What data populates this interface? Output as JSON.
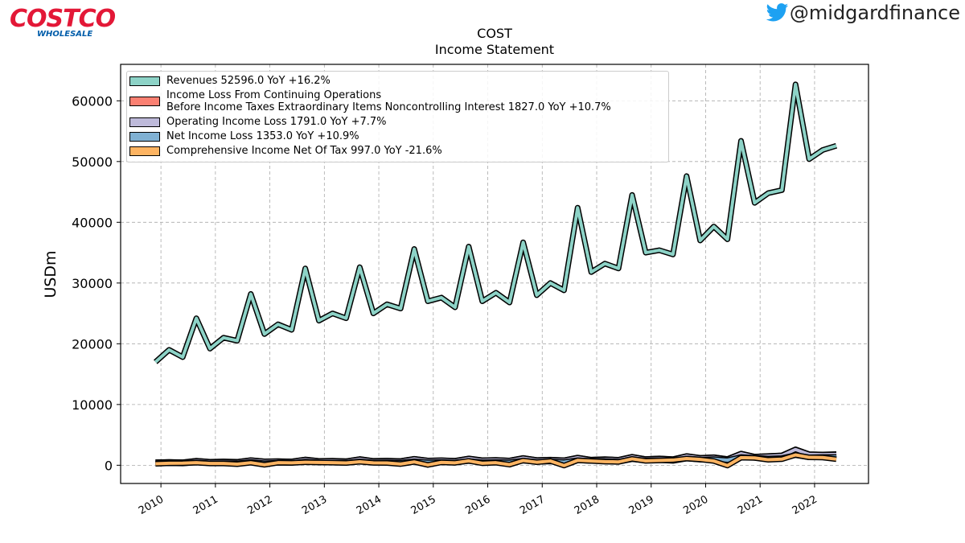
{
  "logo": {
    "brand": "COSTCO",
    "tagline": "WHOLESALE"
  },
  "watermark": "@midgardfinance",
  "chart_data": {
    "type": "line",
    "title": "COST",
    "subtitle": "Income Statement",
    "y_label": "USDm",
    "x": [
      2009.9,
      2010.15,
      2010.4,
      2010.65,
      2010.9,
      2011.15,
      2011.4,
      2011.65,
      2011.9,
      2012.15,
      2012.4,
      2012.65,
      2012.9,
      2013.15,
      2013.4,
      2013.65,
      2013.9,
      2014.15,
      2014.4,
      2014.65,
      2014.9,
      2015.15,
      2015.4,
      2015.65,
      2015.9,
      2016.15,
      2016.4,
      2016.65,
      2016.9,
      2017.15,
      2017.4,
      2017.65,
      2017.9,
      2018.15,
      2018.4,
      2018.65,
      2018.9,
      2019.15,
      2019.4,
      2019.65,
      2019.9,
      2020.15,
      2020.4,
      2020.65,
      2020.9,
      2021.15,
      2021.4,
      2021.65,
      2021.9,
      2022.15,
      2022.4
    ],
    "xlim": [
      2009.26,
      2022.99
    ],
    "xticks": [
      2010,
      2011,
      2012,
      2013,
      2014,
      2015,
      2016,
      2017,
      2018,
      2019,
      2020,
      2021,
      2022
    ],
    "ylim": [
      -3000,
      66000
    ],
    "yticks": [
      0,
      10000,
      20000,
      30000,
      40000,
      50000,
      60000
    ],
    "grid": true,
    "legend": "upper left",
    "series": [
      {
        "name": "Revenues  52596.0 YoY +16.2%",
        "color": "#8dd3c7",
        "values": [
          17000,
          19000,
          17800,
          24200,
          19200,
          21000,
          20500,
          28200,
          21600,
          23200,
          22300,
          32400,
          23800,
          25000,
          24200,
          32600,
          25000,
          26500,
          25800,
          35600,
          27000,
          27600,
          26000,
          36000,
          27000,
          28400,
          26800,
          36700,
          28000,
          30000,
          28800,
          42400,
          31800,
          33200,
          32400,
          44500,
          35000,
          35400,
          34700,
          47600,
          37000,
          39300,
          37200,
          53400,
          43200,
          44800,
          45300,
          62700,
          50400,
          51900,
          52596
        ]
      },
      {
        "name": "Income Loss From Continuing Operations\nBefore Income Taxes Extraordinary Items Noncontrolling Interest  1827.0 YoY +10.7%",
        "color": "#fb8072",
        "values": [
          500,
          540,
          490,
          740,
          580,
          620,
          570,
          850,
          640,
          680,
          630,
          950,
          710,
          740,
          670,
          1020,
          720,
          760,
          700,
          1060,
          780,
          820,
          740,
          1120,
          820,
          870,
          780,
          1200,
          860,
          920,
          820,
          1260,
          920,
          1000,
          900,
          1400,
          1020,
          1120,
          1000,
          1520,
          1220,
          1320,
          1020,
          1920,
          1420,
          1520,
          1620,
          2620,
          1820,
          1770,
          1827
        ]
      },
      {
        "name": "Operating Income Loss  1791.0 YoY +7.7%",
        "color": "#bebada",
        "values": [
          480,
          520,
          470,
          720,
          560,
          600,
          550,
          830,
          620,
          660,
          610,
          930,
          690,
          720,
          650,
          1000,
          700,
          740,
          680,
          1040,
          760,
          800,
          720,
          1100,
          800,
          850,
          760,
          1180,
          840,
          900,
          800,
          1240,
          900,
          980,
          880,
          1380,
          1000,
          1100,
          980,
          1500,
          1200,
          1300,
          1000,
          1900,
          1400,
          1500,
          1600,
          2600,
          1800,
          1750,
          1791
        ]
      },
      {
        "name": "Net Income Loss  1353.0 YoY +10.9%",
        "color": "#80b1d3",
        "values": [
          280,
          320,
          300,
          460,
          320,
          350,
          320,
          520,
          330,
          410,
          370,
          600,
          460,
          450,
          410,
          620,
          450,
          480,
          430,
          650,
          470,
          510,
          450,
          700,
          480,
          530,
          480,
          760,
          540,
          630,
          510,
          830,
          700,
          700,
          590,
          1000,
          770,
          840,
          720,
          1100,
          920,
          1000,
          840,
          1350,
          1220,
          1100,
          1180,
          1670,
          1300,
          1350,
          1353
        ]
      },
      {
        "name": "Comprehensive Income Net Of Tax  997.0 YoY -21.6%",
        "color": "#fdb462",
        "values": [
          250,
          330,
          350,
          430,
          300,
          300,
          180,
          420,
          80,
          420,
          400,
          500,
          460,
          430,
          380,
          580,
          400,
          380,
          200,
          550,
          50,
          480,
          400,
          720,
          330,
          420,
          100,
          780,
          500,
          700,
          -50,
          800,
          700,
          600,
          550,
          1050,
          720,
          790,
          850,
          1100,
          950,
          700,
          -50,
          1250,
          1200,
          900,
          1000,
          1700,
          1300,
          1270,
          997
        ]
      }
    ]
  }
}
